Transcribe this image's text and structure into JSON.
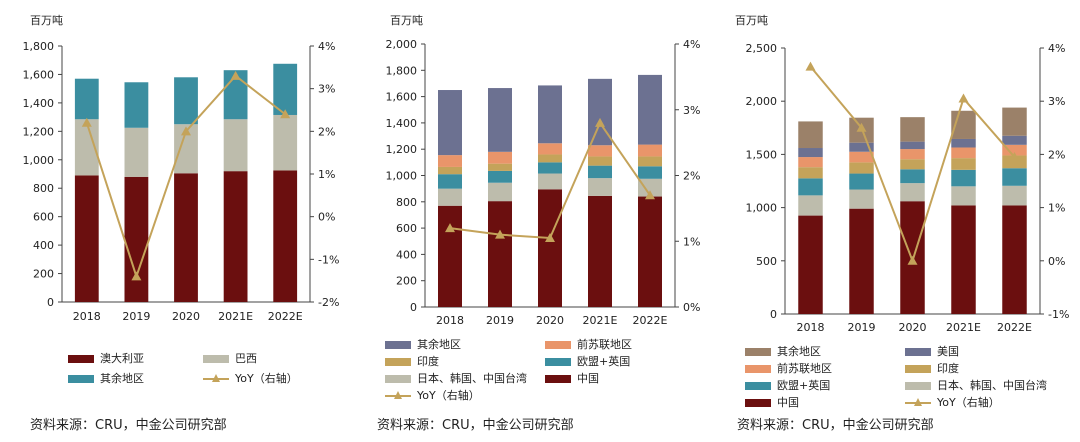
{
  "chart_data": [
    {
      "type": "bar",
      "stacked": true,
      "unit_label": "百万吨",
      "categories": [
        "2018",
        "2019",
        "2020",
        "2021E",
        "2022E"
      ],
      "ylim": [
        0,
        1800
      ],
      "yticks": [
        "0",
        "200",
        "400",
        "600",
        "800",
        "1,000",
        "1,200",
        "1,400",
        "1,600",
        "1,800"
      ],
      "y2lim": [
        -2,
        4
      ],
      "y2ticks": [
        "-2%",
        "-1%",
        "0%",
        "1%",
        "2%",
        "3%",
        "4%"
      ],
      "series": [
        {
          "name": "澳大利亚",
          "color": "#6b0f0f",
          "values": [
            890,
            880,
            905,
            920,
            925
          ]
        },
        {
          "name": "巴西",
          "color": "#bdbcac",
          "values": [
            395,
            345,
            345,
            365,
            390
          ]
        },
        {
          "name": "其余地区",
          "color": "#3b8ea0",
          "values": [
            285,
            320,
            330,
            345,
            360
          ]
        }
      ],
      "line": {
        "name": "YoY（右轴）",
        "color": "#c4a35a",
        "values": [
          2.2,
          -1.4,
          2.0,
          3.3,
          2.4
        ]
      },
      "legend": {
        "position": "bottom",
        "order": [
          0,
          1,
          2,
          "line"
        ]
      },
      "source": "资料来源：CRU，中金公司研究部"
    },
    {
      "type": "bar",
      "stacked": true,
      "unit_label": "百万吨",
      "categories": [
        "2018",
        "2019",
        "2020",
        "2021E",
        "2022E"
      ],
      "ylim": [
        0,
        2000
      ],
      "yticks": [
        "0",
        "200",
        "400",
        "600",
        "800",
        "1,000",
        "1,200",
        "1,400",
        "1,600",
        "1,800",
        "2,000"
      ],
      "y2lim": [
        0,
        4
      ],
      "y2ticks": [
        "0%",
        "1%",
        "2%",
        "3%",
        "4%"
      ],
      "series": [
        {
          "name": "中国",
          "color": "#6b0f0f",
          "values": [
            770,
            805,
            895,
            845,
            840
          ]
        },
        {
          "name": "日本、韩国、中国台湾",
          "color": "#bdbcac",
          "values": [
            130,
            140,
            120,
            135,
            135
          ]
        },
        {
          "name": "欧盟+英国",
          "color": "#3b8ea0",
          "values": [
            110,
            90,
            85,
            95,
            95
          ]
        },
        {
          "name": "印度",
          "color": "#c4a35a",
          "values": [
            55,
            55,
            60,
            70,
            75
          ]
        },
        {
          "name": "前苏联地区",
          "color": "#e9956a",
          "values": [
            90,
            90,
            85,
            85,
            90
          ]
        },
        {
          "name": "其余地区",
          "color": "#6c7191",
          "values": [
            495,
            485,
            440,
            505,
            530
          ]
        }
      ],
      "line": {
        "name": "YoY（右轴）",
        "color": "#c4a35a",
        "values": [
          1.2,
          1.1,
          1.05,
          2.8,
          1.7
        ]
      },
      "legend": {
        "position": "bottom",
        "order": [
          5,
          4,
          3,
          2,
          1,
          0,
          "line"
        ]
      },
      "source": "资料来源：CRU，中金公司研究部"
    },
    {
      "type": "bar",
      "stacked": true,
      "unit_label": "百万吨",
      "categories": [
        "2018",
        "2019",
        "2020",
        "2021E",
        "2022E"
      ],
      "ylim": [
        0,
        2500
      ],
      "yticks": [
        "0",
        "500",
        "1,000",
        "1,500",
        "2,000",
        "2,500"
      ],
      "y2lim": [
        -1,
        4
      ],
      "y2ticks": [
        "-1%",
        "0%",
        "1%",
        "2%",
        "3%",
        "4%"
      ],
      "series": [
        {
          "name": "中国",
          "color": "#6b0f0f",
          "values": [
            925,
            990,
            1060,
            1020,
            1020
          ]
        },
        {
          "name": "日本、韩国、中国台湾",
          "color": "#bdbcac",
          "values": [
            190,
            180,
            170,
            180,
            185
          ]
        },
        {
          "name": "欧盟+英国",
          "color": "#3b8ea0",
          "values": [
            160,
            150,
            130,
            155,
            165
          ]
        },
        {
          "name": "印度",
          "color": "#c4a35a",
          "values": [
            105,
            105,
            95,
            110,
            120
          ]
        },
        {
          "name": "前苏联地区",
          "color": "#e9956a",
          "values": [
            95,
            100,
            95,
            100,
            100
          ]
        },
        {
          "name": "美国",
          "color": "#6c7191",
          "values": [
            85,
            85,
            70,
            80,
            85
          ]
        },
        {
          "name": "其余地区",
          "color": "#9b8169",
          "values": [
            250,
            235,
            230,
            265,
            265
          ]
        }
      ],
      "line": {
        "name": "YoY（右轴）",
        "color": "#c4a35a",
        "values": [
          3.65,
          2.5,
          0.0,
          3.05,
          1.95
        ]
      },
      "legend": {
        "position": "bottom",
        "order": [
          6,
          5,
          4,
          3,
          2,
          1,
          0,
          "line"
        ]
      },
      "source": "资料来源：CRU，中金公司研究部"
    }
  ]
}
